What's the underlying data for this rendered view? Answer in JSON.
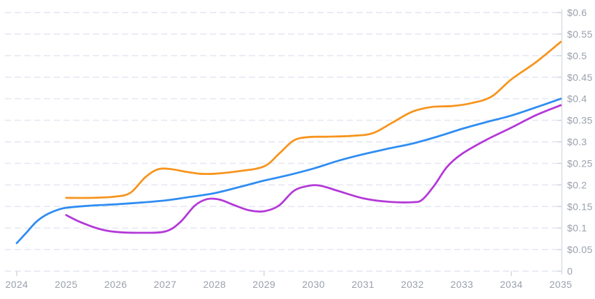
{
  "chart_data": {
    "type": "line",
    "title": "",
    "xlabel": "",
    "ylabel": "",
    "xlim": [
      2024,
      2035
    ],
    "ylim": [
      0,
      0.6
    ],
    "grid": "horizontal-dashed",
    "legend_position": "none",
    "x_tick_labels": [
      "2024",
      "2025",
      "2026",
      "2027",
      "2028",
      "2029",
      "2030",
      "2031",
      "2032",
      "2033",
      "2034",
      "2035"
    ],
    "x_major_tick_years": [
      2024,
      2029,
      2034
    ],
    "y_ticks": [
      {
        "value": 0.6,
        "label": "$0.6"
      },
      {
        "value": 0.55,
        "label": "$0.55"
      },
      {
        "value": 0.5,
        "label": "$0.5"
      },
      {
        "value": 0.45,
        "label": "$0.45"
      },
      {
        "value": 0.4,
        "label": "$0.4"
      },
      {
        "value": 0.35,
        "label": "$0.35"
      },
      {
        "value": 0.3,
        "label": "$0.3"
      },
      {
        "value": 0.25,
        "label": "$0.25"
      },
      {
        "value": 0.2,
        "label": "$0.2"
      },
      {
        "value": 0.15,
        "label": "$0.15"
      },
      {
        "value": 0.1,
        "label": "$0.1"
      },
      {
        "value": 0.05,
        "label": "$0.05"
      },
      {
        "value": 0,
        "label": "0"
      }
    ],
    "colors": {
      "background": "#ffffff",
      "gridline": "#e6e9f2",
      "axis_line": "#d9dce3",
      "tick": "#ccd0d9",
      "label_text": "#9aa0ac",
      "series_blue": "#2f8df2",
      "series_orange": "#f7941d",
      "series_purple": "#b438d8"
    },
    "series": [
      {
        "name": "blue-forecast-line",
        "color": "#2f8df2",
        "points": [
          [
            2024.0,
            0.065
          ],
          [
            2024.2,
            0.09
          ],
          [
            2024.4,
            0.115
          ],
          [
            2024.6,
            0.131
          ],
          [
            2024.8,
            0.141
          ],
          [
            2025.0,
            0.147
          ],
          [
            2025.5,
            0.152
          ],
          [
            2026.0,
            0.155
          ],
          [
            2026.5,
            0.159
          ],
          [
            2027.0,
            0.164
          ],
          [
            2027.5,
            0.172
          ],
          [
            2028.0,
            0.181
          ],
          [
            2028.5,
            0.195
          ],
          [
            2029.0,
            0.21
          ],
          [
            2029.5,
            0.223
          ],
          [
            2030.0,
            0.238
          ],
          [
            2030.5,
            0.256
          ],
          [
            2031.0,
            0.271
          ],
          [
            2031.5,
            0.284
          ],
          [
            2032.0,
            0.296
          ],
          [
            2032.5,
            0.312
          ],
          [
            2033.0,
            0.33
          ],
          [
            2033.5,
            0.346
          ],
          [
            2034.0,
            0.361
          ],
          [
            2034.5,
            0.38
          ],
          [
            2035.0,
            0.4
          ]
        ]
      },
      {
        "name": "orange-forecast-line",
        "color": "#f7941d",
        "points": [
          [
            2025.0,
            0.17
          ],
          [
            2025.5,
            0.17
          ],
          [
            2026.0,
            0.173
          ],
          [
            2026.3,
            0.182
          ],
          [
            2026.6,
            0.218
          ],
          [
            2026.85,
            0.236
          ],
          [
            2027.1,
            0.237
          ],
          [
            2027.4,
            0.231
          ],
          [
            2027.7,
            0.226
          ],
          [
            2028.0,
            0.226
          ],
          [
            2028.5,
            0.232
          ],
          [
            2029.0,
            0.243
          ],
          [
            2029.3,
            0.272
          ],
          [
            2029.6,
            0.303
          ],
          [
            2029.9,
            0.311
          ],
          [
            2030.3,
            0.312
          ],
          [
            2030.8,
            0.314
          ],
          [
            2031.2,
            0.32
          ],
          [
            2031.6,
            0.345
          ],
          [
            2032.0,
            0.37
          ],
          [
            2032.4,
            0.381
          ],
          [
            2032.8,
            0.383
          ],
          [
            2033.2,
            0.39
          ],
          [
            2033.6,
            0.405
          ],
          [
            2034.0,
            0.445
          ],
          [
            2034.5,
            0.485
          ],
          [
            2035.0,
            0.532
          ]
        ]
      },
      {
        "name": "purple-forecast-line",
        "color": "#b438d8",
        "points": [
          [
            2025.0,
            0.13
          ],
          [
            2025.3,
            0.113
          ],
          [
            2025.7,
            0.097
          ],
          [
            2026.0,
            0.091
          ],
          [
            2026.5,
            0.089
          ],
          [
            2027.0,
            0.092
          ],
          [
            2027.3,
            0.113
          ],
          [
            2027.6,
            0.152
          ],
          [
            2027.85,
            0.167
          ],
          [
            2028.1,
            0.166
          ],
          [
            2028.4,
            0.153
          ],
          [
            2028.7,
            0.141
          ],
          [
            2029.0,
            0.139
          ],
          [
            2029.3,
            0.152
          ],
          [
            2029.6,
            0.186
          ],
          [
            2029.9,
            0.198
          ],
          [
            2030.15,
            0.198
          ],
          [
            2030.5,
            0.186
          ],
          [
            2031.0,
            0.169
          ],
          [
            2031.5,
            0.161
          ],
          [
            2032.0,
            0.16
          ],
          [
            2032.2,
            0.166
          ],
          [
            2032.45,
            0.2
          ],
          [
            2032.7,
            0.242
          ],
          [
            2033.0,
            0.272
          ],
          [
            2033.5,
            0.305
          ],
          [
            2034.0,
            0.333
          ],
          [
            2034.5,
            0.362
          ],
          [
            2035.0,
            0.385
          ]
        ]
      }
    ]
  }
}
